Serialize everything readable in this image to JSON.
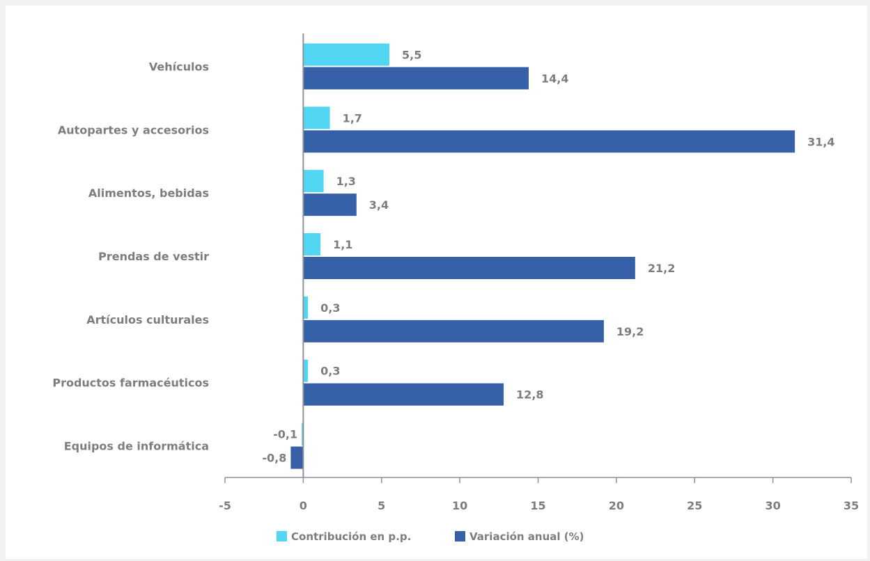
{
  "chart_data": {
    "type": "bar",
    "orientation": "horizontal",
    "categories": [
      "Vehículos",
      "Autopartes y accesorios",
      "Alimentos, bebidas",
      "Prendas de vestir",
      "Artículos culturales",
      "Productos farmacéuticos",
      "Equipos de informática"
    ],
    "series": [
      {
        "name": "Contribución en p.p.",
        "color": "#52d6f4",
        "values": [
          5.5,
          1.7,
          1.3,
          1.1,
          0.3,
          0.3,
          -0.1
        ],
        "labels": [
          "5,5",
          "1,7",
          "1,3",
          "1,1",
          "0,3",
          "0,3",
          "-0,1"
        ]
      },
      {
        "name": "Variación anual (%)",
        "color": "#3660a8",
        "values": [
          14.4,
          31.4,
          3.4,
          21.2,
          19.2,
          12.8,
          -0.8
        ],
        "labels": [
          "14,4",
          "31,4",
          "3,4",
          "21,2",
          "19,2",
          "12,8",
          "-0,8"
        ]
      }
    ],
    "xlim": [
      -5,
      35
    ],
    "xticks": [
      -5,
      0,
      5,
      10,
      15,
      20,
      25,
      30,
      35
    ],
    "grid": false,
    "legend_position": "bottom"
  }
}
